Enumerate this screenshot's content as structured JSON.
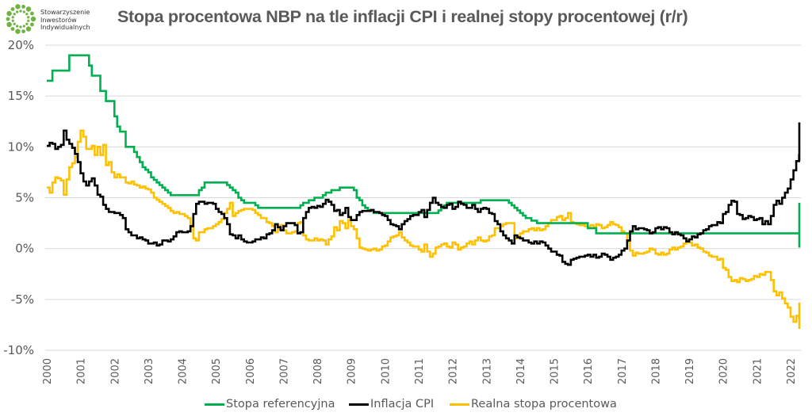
{
  "logo": {
    "lines": [
      "Stowarzyszenie",
      "Inwestorów",
      "Indywidualnych"
    ],
    "icon": "sii-dots-circle-icon",
    "color": "#6DB33F"
  },
  "chart_data": {
    "type": "line",
    "step": true,
    "title": "Stopa procentowa NBP na tle inflacji CPI i realnej stopy procentowej (r/r)",
    "xlabel": "",
    "ylabel": "",
    "ylim": [
      -10,
      20
    ],
    "yticks": [
      20,
      15,
      10,
      5,
      0,
      -5,
      -10
    ],
    "ytick_labels": [
      "20%",
      "15%",
      "10%",
      "5%",
      "0%",
      "-5%",
      "-10%"
    ],
    "xlim": [
      2000.0,
      2022.4
    ],
    "xticks": [
      2000,
      2001,
      2002,
      2003,
      2004,
      2005,
      2006,
      2007,
      2008,
      2009,
      2010,
      2011,
      2012,
      2013,
      2014,
      2015,
      2016,
      2017,
      2018,
      2019,
      2020,
      2021,
      2022
    ],
    "xtick_labels": [
      "2000",
      "2001",
      "2002",
      "2003",
      "2004",
      "2005",
      "2006",
      "2007",
      "2008",
      "2009",
      "2010",
      "2011",
      "2012",
      "2013",
      "2014",
      "2015",
      "2016",
      "2017",
      "2018",
      "2019",
      "2020",
      "2021",
      "2022"
    ],
    "grid": "horizontal",
    "legend_position": "bottom",
    "x_start": 2000.0,
    "x_step_months": 1,
    "series": [
      {
        "name": "Stopa referencyjna",
        "color": "#00B050",
        "values": [
          16.5,
          16.5,
          17.5,
          17.5,
          17.5,
          17.5,
          17.5,
          17.5,
          19,
          19,
          19,
          19,
          19,
          19,
          19,
          18,
          17,
          17,
          17,
          15.5,
          15.5,
          14.5,
          14.5,
          14.5,
          13,
          12,
          11.5,
          11.5,
          10,
          10,
          10,
          9.5,
          9,
          8.5,
          8,
          7.75,
          7.5,
          7,
          6.75,
          6.5,
          6.25,
          6,
          5.75,
          5.5,
          5.25,
          5.25,
          5.25,
          5.25,
          5.25,
          5.25,
          5.25,
          5.25,
          5.25,
          5.25,
          5.75,
          6,
          6.5,
          6.5,
          6.5,
          6.5,
          6.5,
          6.5,
          6.5,
          6.5,
          6.25,
          6,
          5.75,
          5.5,
          5,
          4.75,
          4.5,
          4.5,
          4.5,
          4.5,
          4.25,
          4,
          4,
          4,
          4,
          4,
          4,
          4,
          4,
          4,
          4,
          4,
          4,
          4,
          4,
          4,
          4.25,
          4.5,
          4.5,
          4.75,
          4.75,
          5,
          5,
          5,
          5.25,
          5.5,
          5.5,
          5.75,
          5.75,
          5.75,
          6,
          6,
          6,
          6,
          6,
          5.75,
          5,
          4.75,
          4.25,
          4,
          3.75,
          3.75,
          3.5,
          3.5,
          3.5,
          3.5,
          3.5,
          3.5,
          3.5,
          3.5,
          3.5,
          3.5,
          3.5,
          3.5,
          3.5,
          3.5,
          3.5,
          3.5,
          3.5,
          3.5,
          3.5,
          3.5,
          3.5,
          3.5,
          3.5,
          3.75,
          4,
          4.25,
          4.5,
          4.5,
          4.5,
          4.5,
          4.5,
          4.5,
          4.5,
          4.5,
          4.5,
          4.5,
          4.5,
          4.5,
          4.75,
          4.75,
          4.75,
          4.75,
          4.75,
          4.75,
          4.75,
          4.75,
          4.75,
          4.75,
          4.5,
          4.25,
          4,
          3.75,
          3.5,
          3.25,
          3,
          3,
          2.75,
          2.75,
          2.5,
          2.5,
          2.5,
          2.5,
          2.5,
          2.5,
          2.5,
          2.5,
          2.5,
          2.5,
          2.5,
          2.5,
          2.5,
          2.5,
          2.5,
          2.5,
          2.5,
          2.5,
          2,
          2,
          2,
          1.5,
          1.5,
          1.5,
          1.5,
          1.5,
          1.5,
          1.5,
          1.5,
          1.5,
          1.5,
          1.5,
          1.5,
          1.5,
          1.5,
          1.5,
          1.5,
          1.5,
          1.5,
          1.5,
          1.5,
          1.5,
          1.5,
          1.5,
          1.5,
          1.5,
          1.5,
          1.5,
          1.5,
          1.5,
          1.5,
          1.5,
          1.5,
          1.5,
          1.5,
          1.5,
          1.5,
          1.5,
          1.5,
          1.5,
          1.5,
          1.5,
          1.5,
          1.5,
          1.5,
          1.5,
          1.5,
          1.5,
          1.5,
          1.5,
          1.5,
          1.5,
          1.5,
          1.5,
          1.5,
          1.5,
          1.5,
          1.5,
          1.5,
          1.5,
          1.5,
          1.5,
          1.5,
          1.5,
          1.5,
          1.5,
          1.5,
          1.5,
          1.5,
          1.5,
          1.5,
          1.5,
          1.5,
          1.5,
          1.5,
          1.5,
          1.5,
          1.5,
          1.5,
          1.5,
          1.5,
          1,
          0.5,
          0.5,
          0.1,
          0.1,
          0.1,
          0.1,
          0.1,
          0.1,
          0.1,
          0.1,
          0.1,
          0.1,
          0.1,
          0.1,
          0.1,
          0.1,
          0.1,
          0.1,
          0.1,
          0.1,
          0.1,
          0.5,
          0.5,
          1.25,
          1.75,
          2.25,
          2.75,
          3.5,
          4.5,
          4.5
        ]
      },
      {
        "name": "Inflacja CPI",
        "color": "#000000",
        "values": [
          10.1,
          10.4,
          10.3,
          9.8,
          10.0,
          10.2,
          11.6,
          10.7,
          10.3,
          9.9,
          9.3,
          8.5,
          7.4,
          6.6,
          6.2,
          6.6,
          6.9,
          6.2,
          5.3,
          5.1,
          4.3,
          3.9,
          3.6,
          3.6,
          3.5,
          3.5,
          3.3,
          3.0,
          1.9,
          1.6,
          1.3,
          1.3,
          1.0,
          1.1,
          0.9,
          0.8,
          0.5,
          0.5,
          0.6,
          0.3,
          0.4,
          0.8,
          0.8,
          0.7,
          0.9,
          1.2,
          1.6,
          1.7,
          1.6,
          1.6,
          1.7,
          2.2,
          3.4,
          4.4,
          4.6,
          4.6,
          4.4,
          4.5,
          4.5,
          4.4,
          3.9,
          3.6,
          3.4,
          3.0,
          2.4,
          1.4,
          1.3,
          1.0,
          1.3,
          0.9,
          0.7,
          0.6,
          0.6,
          0.7,
          0.9,
          0.9,
          1.1,
          1.0,
          1.4,
          1.5,
          1.8,
          2.4,
          2.1,
          1.8,
          2.2,
          2.5,
          2.5,
          2.5,
          2.3,
          1.5,
          1.6,
          3.0,
          3.6,
          4.0,
          4.1,
          4.0,
          4.2,
          4.1,
          4.4,
          4.8,
          4.6,
          4.3,
          3.7,
          3.8,
          3.3,
          3.5,
          4.0,
          3.1,
          2.8,
          2.8,
          3.3,
          3.6,
          3.7,
          3.7,
          3.7,
          3.8,
          3.6,
          3.6,
          3.5,
          3.3,
          3.2,
          2.8,
          2.4,
          2.3,
          2.2,
          1.9,
          2.4,
          2.7,
          2.9,
          3.2,
          3.3,
          3.3,
          3.6,
          3.8,
          3.1,
          3.8,
          4.5,
          5.0,
          4.5,
          4.3,
          4.1,
          4.0,
          4.3,
          4.4,
          3.9,
          4.1,
          4.6,
          4.4,
          4.3,
          4.0,
          4.0,
          4.3,
          3.9,
          3.6,
          3.9,
          4.0,
          3.9,
          3.5,
          3.4,
          2.7,
          2.4,
          1.7,
          1.3,
          1.0,
          0.8,
          0.5,
          1.3,
          1.1,
          1.0,
          0.8,
          0.8,
          0.6,
          0.5,
          0.7,
          0.5,
          0.7,
          0.6,
          0.3,
          0.0,
          -0.3,
          -0.3,
          -0.6,
          -0.7,
          -1.3,
          -1.5,
          -1.6,
          -1.1,
          -1.0,
          -0.9,
          -0.8,
          -0.8,
          -0.7,
          -0.6,
          -0.8,
          -0.6,
          -0.9,
          -0.8,
          -0.5,
          -0.6,
          -0.8,
          -1.1,
          -0.9,
          -0.8,
          -0.6,
          -0.2,
          0.0,
          0.8,
          1.7,
          2.2,
          1.9,
          2.0,
          2.0,
          1.9,
          1.8,
          1.5,
          1.6,
          2.0,
          2.1,
          1.9,
          2.1,
          2.0,
          1.6,
          1.4,
          1.6,
          1.4,
          1.3,
          1.0,
          0.7,
          0.9,
          1.2,
          1.1,
          1.4,
          1.5,
          1.8,
          1.9,
          2.2,
          2.3,
          2.3,
          2.6,
          2.5,
          3.4,
          3.6,
          4.3,
          4.7,
          4.6,
          3.4,
          3.3,
          2.9,
          3.0,
          3.2,
          3.1,
          2.8,
          2.9,
          3.0,
          2.4,
          2.7,
          2.4,
          3.2,
          4.3,
          4.7,
          4.4,
          5.0,
          5.5,
          5.9,
          6.8,
          7.7,
          8.6,
          9.2,
          8.6,
          11.0,
          12.4,
          12.4
        ]
      },
      {
        "name": "Realna stopa procentowa",
        "color": "#FFC000",
        "values": [
          6.0,
          5.5,
          6.5,
          7.0,
          6.9,
          6.7,
          5.3,
          6.8,
          8.0,
          8.4,
          9.0,
          10.5,
          11.6,
          11.0,
          9.8,
          9.8,
          10.1,
          9.2,
          10.0,
          9.2,
          10.2,
          8.2,
          8.5,
          7.5,
          7.0,
          7.3,
          7.0,
          7.0,
          6.5,
          6.4,
          6.6,
          6.3,
          6.2,
          6.0,
          6.1,
          5.9,
          5.8,
          5.5,
          5.0,
          4.8,
          4.6,
          4.4,
          4.2,
          4.0,
          3.7,
          3.5,
          3.6,
          3.4,
          3.4,
          3.2,
          3.0,
          2.3,
          1.0,
          0.8,
          1.6,
          1.6,
          1.9,
          2.0,
          2.0,
          2.2,
          2.4,
          2.6,
          2.9,
          3.5,
          3.9,
          4.5,
          3.2,
          3.5,
          3.7,
          3.8,
          3.9,
          3.9,
          3.9,
          3.8,
          3.5,
          3.3,
          3.0,
          3.0,
          2.6,
          2.5,
          2.2,
          1.6,
          1.9,
          2.3,
          1.8,
          1.5,
          1.5,
          1.6,
          1.7,
          2.5,
          2.6,
          1.3,
          0.9,
          0.8,
          0.8,
          1.0,
          0.8,
          0.9,
          0.8,
          0.4,
          0.9,
          1.2,
          2.1,
          1.8,
          2.7,
          2.5,
          2.0,
          2.8,
          2.2,
          1.9,
          1.0,
          0.1,
          0.0,
          -0.1,
          -0.2,
          -0.1,
          0.0,
          -0.2,
          -0.1,
          0.2,
          0.3,
          0.7,
          1.1,
          1.2,
          1.3,
          1.6,
          1.1,
          0.8,
          0.6,
          0.3,
          0.2,
          0.2,
          -0.1,
          -0.3,
          0.4,
          -0.3,
          -0.8,
          -0.5,
          0.1,
          0.2,
          0.4,
          0.5,
          0.2,
          0.1,
          0.6,
          0.4,
          -0.1,
          0.1,
          0.2,
          0.5,
          0.7,
          0.4,
          0.8,
          1.1,
          0.8,
          0.7,
          0.8,
          1.2,
          1.3,
          2.0,
          2.0,
          2.2,
          2.4,
          2.5,
          2.5,
          2.5,
          1.0,
          1.2,
          1.5,
          1.7,
          1.7,
          1.9,
          2.0,
          1.8,
          2.0,
          1.8,
          1.9,
          2.2,
          2.5,
          2.8,
          2.8,
          3.1,
          3.2,
          2.8,
          3.0,
          3.5,
          2.6,
          2.5,
          2.4,
          2.3,
          2.3,
          2.2,
          2.1,
          2.3,
          2.1,
          2.4,
          2.3,
          2.0,
          2.1,
          2.3,
          2.6,
          2.4,
          2.3,
          2.1,
          1.7,
          1.5,
          0.7,
          -0.2,
          -0.7,
          -0.4,
          -0.5,
          -0.5,
          -0.4,
          -0.3,
          0.0,
          -0.1,
          -0.5,
          -0.6,
          -0.4,
          -0.6,
          -0.5,
          -0.1,
          0.1,
          -0.1,
          0.1,
          0.2,
          0.5,
          0.8,
          0.6,
          0.3,
          0.4,
          0.1,
          0.0,
          -0.3,
          -0.4,
          -0.7,
          -0.8,
          -0.8,
          -1.1,
          -1.0,
          -1.9,
          -2.1,
          -2.8,
          -3.2,
          -3.1,
          -3.3,
          -2.9,
          -3.0,
          -3.2,
          -3.1,
          -3.0,
          -2.7,
          -2.8,
          -2.5,
          -2.6,
          -2.3,
          -2.3,
          -3.1,
          -4.2,
          -4.6,
          -4.3,
          -4.9,
          -5.4,
          -5.8,
          -6.7,
          -7.2,
          -6.6,
          -6.9,
          -5.3,
          -7.3,
          -7.9,
          -6.9
        ]
      }
    ]
  },
  "legend": {
    "items": [
      {
        "label": "Stopa referencyjna",
        "color": "#00B050"
      },
      {
        "label": "Inflacja CPI",
        "color": "#000000"
      },
      {
        "label": "Realna stopa procentowa",
        "color": "#FFC000"
      }
    ]
  }
}
